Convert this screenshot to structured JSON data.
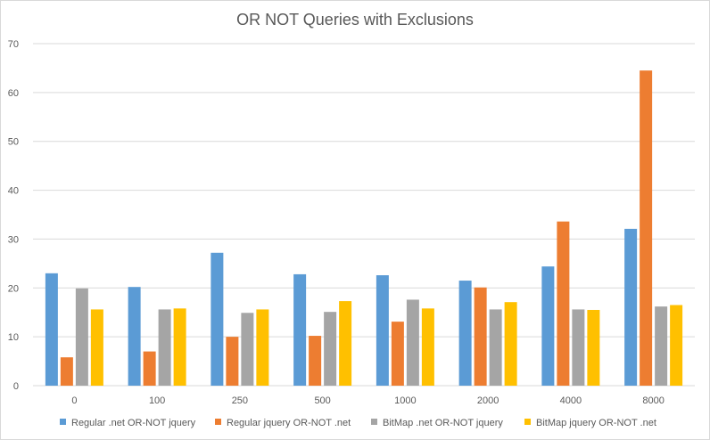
{
  "chart_data": {
    "type": "bar",
    "title": "OR NOT Queries with Exclusions",
    "xlabel": "",
    "ylabel": "",
    "ylim": [
      0,
      70
    ],
    "yticks": [
      0,
      10,
      20,
      30,
      40,
      50,
      60,
      70
    ],
    "categories": [
      "0",
      "100",
      "250",
      "500",
      "1000",
      "2000",
      "4000",
      "8000"
    ],
    "series": [
      {
        "name": "Regular .net OR-NOT jquery",
        "color": "#5b9bd5",
        "values": [
          23.0,
          20.2,
          27.2,
          22.8,
          22.6,
          21.5,
          24.4,
          32.1
        ]
      },
      {
        "name": "Regular jquery OR-NOT .net",
        "color": "#ed7d31",
        "values": [
          5.8,
          7.0,
          10.0,
          10.2,
          13.1,
          20.1,
          33.6,
          64.5
        ]
      },
      {
        "name": "BitMap .net OR-NOT jquery",
        "color": "#a5a5a5",
        "values": [
          19.9,
          15.6,
          14.9,
          15.1,
          17.6,
          15.6,
          15.6,
          16.2
        ]
      },
      {
        "name": "BitMap jquery OR-NOT .net",
        "color": "#ffc000",
        "values": [
          15.6,
          15.8,
          15.6,
          17.3,
          15.8,
          17.1,
          15.5,
          16.5
        ]
      }
    ],
    "grid": true,
    "legend": "bottom"
  }
}
